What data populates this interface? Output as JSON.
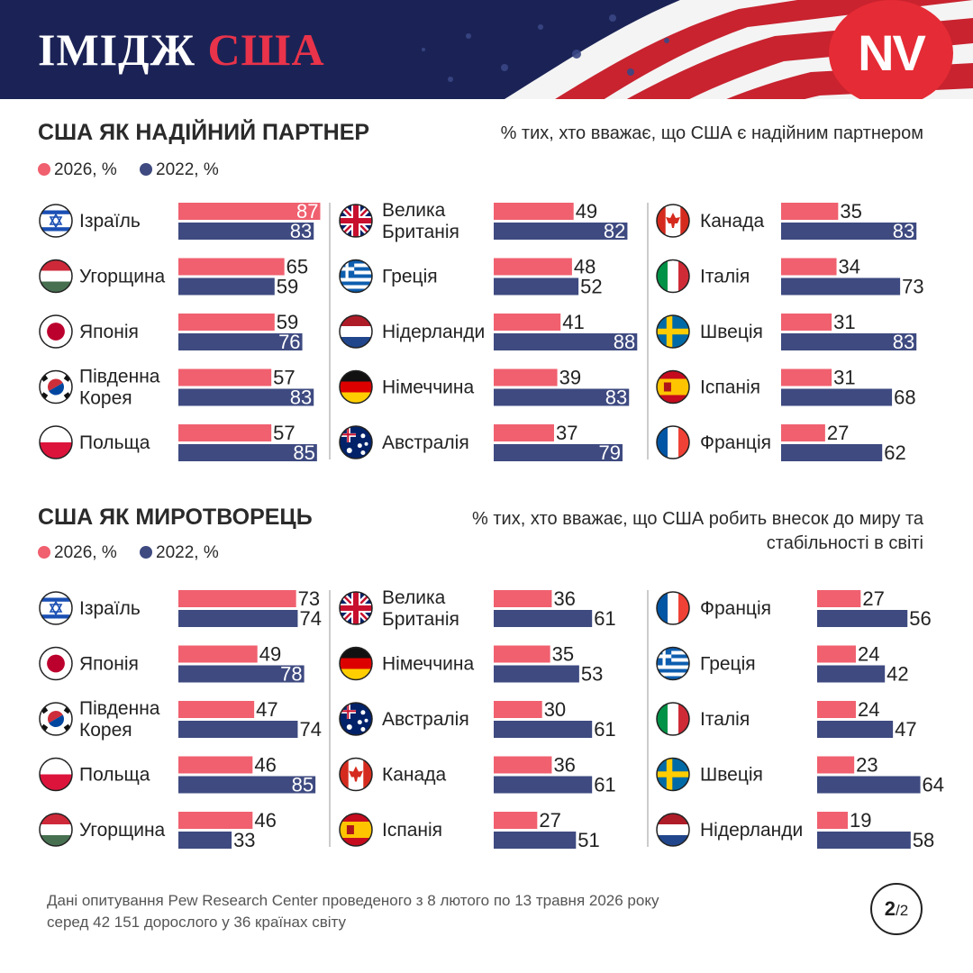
{
  "header": {
    "title_white": "ІМІДЖ",
    "title_red": "США",
    "logo": "NV"
  },
  "colors": {
    "series_2026": "#f0606f",
    "series_2022": "#3e4a80",
    "header_bg": "#1b2356",
    "accent": "#e52b35"
  },
  "chart_data": [
    {
      "type": "bar",
      "title": "США ЯК НАДІЙНИЙ ПАРТНЕР",
      "subtitle": "% тих, хто вважає, що США є надійним партнером",
      "legend": [
        "2026, %",
        "2022, %"
      ],
      "columns": [
        [
          {
            "label": "Ізраїль",
            "flag": "israel",
            "v2026": 87,
            "v2022": 83
          },
          {
            "label": "Угорщина",
            "flag": "hungary",
            "v2026": 65,
            "v2022": 59
          },
          {
            "label": "Японія",
            "flag": "japan",
            "v2026": 59,
            "v2022": 76
          },
          {
            "label": "Південна Корея",
            "flag": "south-korea",
            "v2026": 57,
            "v2022": 83
          },
          {
            "label": "Польща",
            "flag": "poland",
            "v2026": 57,
            "v2022": 85
          }
        ],
        [
          {
            "label": "Велика Британія",
            "flag": "uk",
            "v2026": 49,
            "v2022": 82
          },
          {
            "label": "Греція",
            "flag": "greece",
            "v2026": 48,
            "v2022": 52
          },
          {
            "label": "Нідерланди",
            "flag": "netherlands",
            "v2026": 41,
            "v2022": 88
          },
          {
            "label": "Німеччина",
            "flag": "germany",
            "v2026": 39,
            "v2022": 83
          },
          {
            "label": "Австралія",
            "flag": "australia",
            "v2026": 37,
            "v2022": 79
          }
        ],
        [
          {
            "label": "Канада",
            "flag": "canada",
            "v2026": 35,
            "v2022": 83
          },
          {
            "label": "Італія",
            "flag": "italy",
            "v2026": 34,
            "v2022": 73
          },
          {
            "label": "Швеція",
            "flag": "sweden",
            "v2026": 31,
            "v2022": 83
          },
          {
            "label": "Іспанія",
            "flag": "spain",
            "v2026": 31,
            "v2022": 68
          },
          {
            "label": "Франція",
            "flag": "france",
            "v2026": 27,
            "v2022": 62
          }
        ]
      ]
    },
    {
      "type": "bar",
      "title": "США ЯК МИРОТВОРЕЦЬ",
      "subtitle": "% тих, хто вважає, що США робить внесок до миру та стабільності в світі",
      "legend": [
        "2026, %",
        "2022, %"
      ],
      "columns": [
        [
          {
            "label": "Ізраїль",
            "flag": "israel",
            "v2026": 73,
            "v2022": 74
          },
          {
            "label": "Японія",
            "flag": "japan",
            "v2026": 49,
            "v2022": 78
          },
          {
            "label": "Південна Корея",
            "flag": "south-korea",
            "v2026": 47,
            "v2022": 74
          },
          {
            "label": "Польща",
            "flag": "poland",
            "v2026": 46,
            "v2022": 85
          },
          {
            "label": "Угорщина",
            "flag": "hungary",
            "v2026": 46,
            "v2022": 33
          }
        ],
        [
          {
            "label": "Велика Британія",
            "flag": "uk",
            "v2026": 36,
            "v2022": 61
          },
          {
            "label": "Німеччина",
            "flag": "germany",
            "v2026": 35,
            "v2022": 53
          },
          {
            "label": "Австралія",
            "flag": "australia",
            "v2026": 30,
            "v2022": 61
          },
          {
            "label": "Канада",
            "flag": "canada",
            "v2026": 36,
            "v2022": 61
          },
          {
            "label": "Іспанія",
            "flag": "spain",
            "v2026": 27,
            "v2022": 51
          }
        ],
        [
          {
            "label": "Франція",
            "flag": "france",
            "v2026": 27,
            "v2022": 56
          },
          {
            "label": "Греція",
            "flag": "greece",
            "v2026": 24,
            "v2022": 42
          },
          {
            "label": "Італія",
            "flag": "italy",
            "v2026": 24,
            "v2022": 47
          },
          {
            "label": "Швеція",
            "flag": "sweden",
            "v2026": 23,
            "v2022": 64
          },
          {
            "label": "Нідерланди",
            "flag": "netherlands",
            "v2026": 19,
            "v2022": 58
          }
        ]
      ]
    }
  ],
  "footer": {
    "line1": "Дані опитування Pew Research Center проведеного з 8 лютого по 13 травня 2026 року",
    "line2": "серед 42 151 дорослого у 36 країнах світу"
  },
  "pagination": {
    "current": "2",
    "total": "/2"
  }
}
